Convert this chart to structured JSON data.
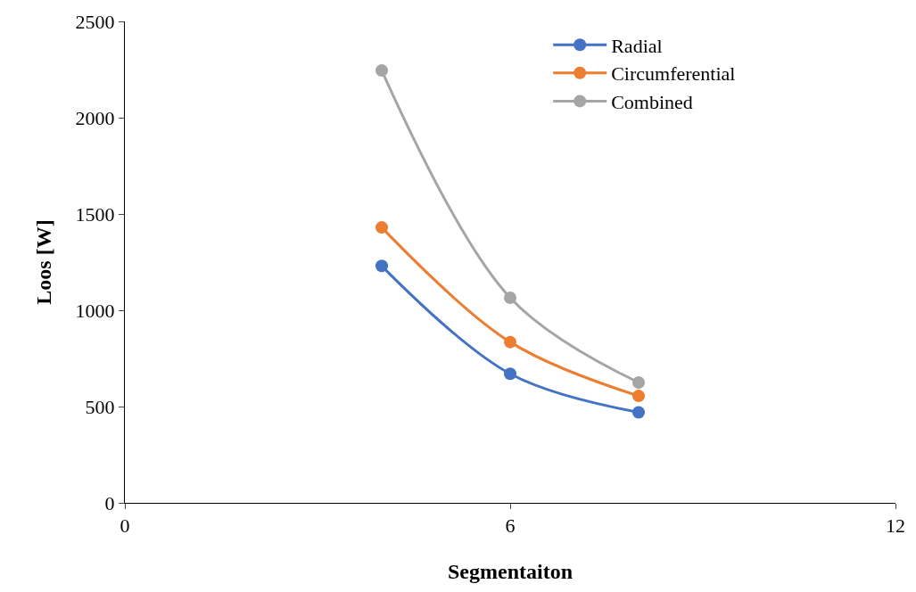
{
  "chart_data": {
    "type": "line",
    "xlabel": "Segmentaiton",
    "ylabel": "Loos [W]",
    "x": [
      4,
      6,
      8
    ],
    "series": [
      {
        "name": "Radial",
        "color": "#4472c4",
        "values": [
          1230,
          670,
          470
        ]
      },
      {
        "name": "Circumferential",
        "color": "#ed7d31",
        "values": [
          1430,
          835,
          555
        ]
      },
      {
        "name": "Combined",
        "color": "#a5a5a5",
        "values": [
          2245,
          1065,
          625
        ]
      }
    ],
    "xlim": [
      0,
      12
    ],
    "xticks": [
      0,
      6,
      12
    ],
    "ylim": [
      0,
      2500
    ],
    "yticks": [
      0,
      500,
      1000,
      1500,
      2000,
      2500
    ],
    "legend": "top right",
    "marker": "circle",
    "line_style": "solid"
  }
}
